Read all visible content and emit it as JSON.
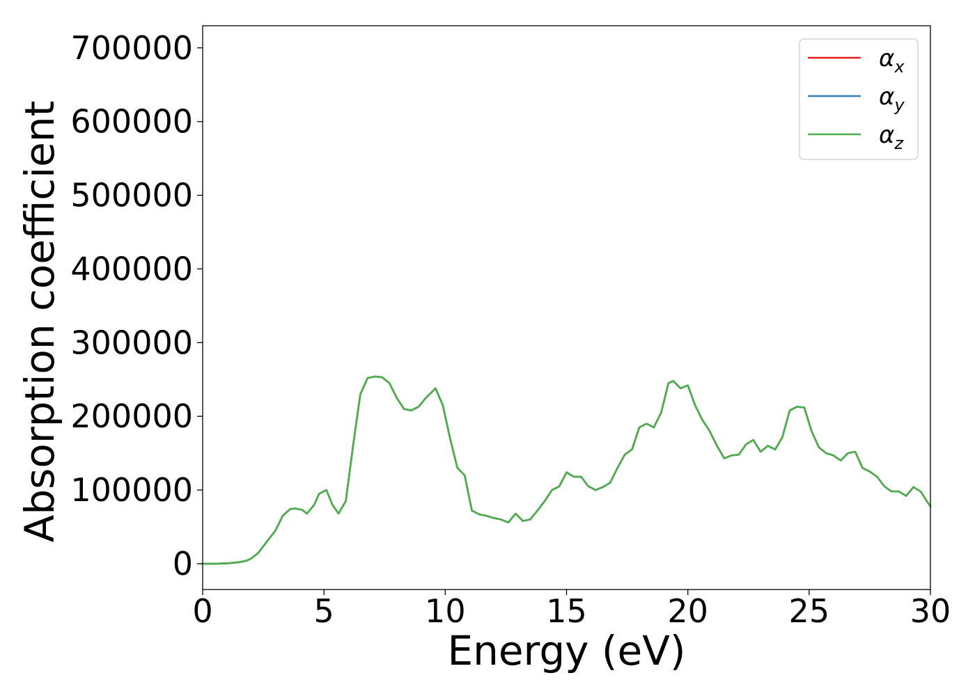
{
  "chart_data": {
    "type": "line",
    "title": "",
    "xlabel": "Energy (eV)",
    "ylabel": "Absorption coefficient",
    "xlim": [
      0,
      30
    ],
    "ylim": [
      -35000,
      730000
    ],
    "xticks": [
      0,
      5,
      10,
      15,
      20,
      25,
      30
    ],
    "yticks": [
      0,
      100000,
      200000,
      300000,
      400000,
      500000,
      600000,
      700000
    ],
    "grid": false,
    "legend_position": "top-right",
    "x": [
      0,
      0.5,
      1,
      1.5,
      1.8,
      2,
      2.3,
      2.6,
      3,
      3.3,
      3.6,
      3.8,
      4.1,
      4.3,
      4.6,
      4.8,
      5.1,
      5.35,
      5.6,
      5.9,
      6.2,
      6.5,
      6.8,
      7.1,
      7.4,
      7.7,
      8,
      8.3,
      8.6,
      8.9,
      9.2,
      9.6,
      9.9,
      10.2,
      10.5,
      10.8,
      11.1,
      11.4,
      11.7,
      12,
      12.3,
      12.6,
      12.9,
      13.2,
      13.5,
      13.8,
      14.1,
      14.4,
      14.7,
      15,
      15.3,
      15.6,
      15.9,
      16.2,
      16.5,
      16.8,
      17.1,
      17.4,
      17.7,
      18,
      18.3,
      18.6,
      18.9,
      19.2,
      19.4,
      19.7,
      20,
      20.3,
      20.6,
      20.9,
      21.2,
      21.5,
      21.8,
      22.1,
      22.4,
      22.7,
      23,
      23.3,
      23.6,
      23.9,
      24.2,
      24.5,
      24.8,
      25.1,
      25.4,
      25.7,
      26,
      26.3,
      26.6,
      26.9,
      27.2,
      27.5,
      27.8,
      28.1,
      28.4,
      28.7,
      29,
      29.3,
      29.6,
      29.85,
      30
    ],
    "series": [
      {
        "name": "αx",
        "color": "#e41a1c",
        "values": [
          0,
          0,
          500,
          2000,
          4000,
          7000,
          15000,
          28000,
          45000,
          65000,
          74000,
          75000,
          73000,
          68000,
          80000,
          95000,
          100000,
          80000,
          68000,
          85000,
          160000,
          230000,
          252000,
          254000,
          253000,
          245000,
          225000,
          210000,
          208000,
          213000,
          225000,
          238000,
          215000,
          170000,
          130000,
          120000,
          72000,
          67000,
          65000,
          62000,
          60000,
          56000,
          68000,
          58000,
          60000,
          72000,
          85000,
          100000,
          105000,
          124000,
          118000,
          118000,
          105000,
          100000,
          104000,
          110000,
          130000,
          148000,
          155000,
          185000,
          190000,
          185000,
          205000,
          245000,
          248000,
          238000,
          242000,
          215000,
          195000,
          180000,
          160000,
          143000,
          147000,
          148000,
          162000,
          168000,
          152000,
          160000,
          155000,
          172000,
          208000,
          213000,
          212000,
          180000,
          158000,
          150000,
          147000,
          140000,
          150000,
          152000,
          130000,
          125000,
          118000,
          105000,
          98000,
          98000,
          92000,
          104000,
          98000,
          85000,
          78000
        ]
      },
      {
        "name": "αy",
        "color": "#377eb8",
        "values": [
          0,
          0,
          500,
          2000,
          4000,
          7000,
          15000,
          28000,
          45000,
          65000,
          74000,
          75000,
          73000,
          68000,
          80000,
          95000,
          100000,
          80000,
          68000,
          85000,
          160000,
          230000,
          252000,
          254000,
          253000,
          245000,
          225000,
          210000,
          208000,
          213000,
          225000,
          238000,
          215000,
          170000,
          130000,
          120000,
          72000,
          67000,
          65000,
          62000,
          60000,
          56000,
          68000,
          58000,
          60000,
          72000,
          85000,
          100000,
          105000,
          124000,
          118000,
          118000,
          105000,
          100000,
          104000,
          110000,
          130000,
          148000,
          155000,
          185000,
          190000,
          185000,
          205000,
          245000,
          248000,
          238000,
          242000,
          215000,
          195000,
          180000,
          160000,
          143000,
          147000,
          148000,
          162000,
          168000,
          152000,
          160000,
          155000,
          172000,
          208000,
          213000,
          212000,
          180000,
          158000,
          150000,
          147000,
          140000,
          150000,
          152000,
          130000,
          125000,
          118000,
          105000,
          98000,
          98000,
          92000,
          104000,
          98000,
          85000,
          78000
        ]
      },
      {
        "name": "αz",
        "color": "#4daf4a",
        "values": [
          0,
          0,
          500,
          2000,
          4000,
          7000,
          15000,
          28000,
          45000,
          65000,
          74000,
          75000,
          73000,
          68000,
          80000,
          95000,
          100000,
          80000,
          68000,
          85000,
          160000,
          230000,
          252000,
          254000,
          253000,
          245000,
          225000,
          210000,
          208000,
          213000,
          225000,
          238000,
          215000,
          170000,
          130000,
          120000,
          72000,
          67000,
          65000,
          62000,
          60000,
          56000,
          68000,
          58000,
          60000,
          72000,
          85000,
          100000,
          105000,
          124000,
          118000,
          118000,
          105000,
          100000,
          104000,
          110000,
          130000,
          148000,
          155000,
          185000,
          190000,
          185000,
          205000,
          245000,
          248000,
          238000,
          242000,
          215000,
          195000,
          180000,
          160000,
          143000,
          147000,
          148000,
          162000,
          168000,
          152000,
          160000,
          155000,
          172000,
          208000,
          213000,
          212000,
          180000,
          158000,
          150000,
          147000,
          140000,
          150000,
          152000,
          130000,
          125000,
          118000,
          105000,
          98000,
          98000,
          92000,
          104000,
          98000,
          85000,
          78000
        ]
      }
    ],
    "legend": [
      {
        "symbol": "α",
        "subscript": "x",
        "color": "#e41a1c"
      },
      {
        "symbol": "α",
        "subscript": "y",
        "color": "#377eb8"
      },
      {
        "symbol": "α",
        "subscript": "z",
        "color": "#4daf4a"
      }
    ]
  }
}
